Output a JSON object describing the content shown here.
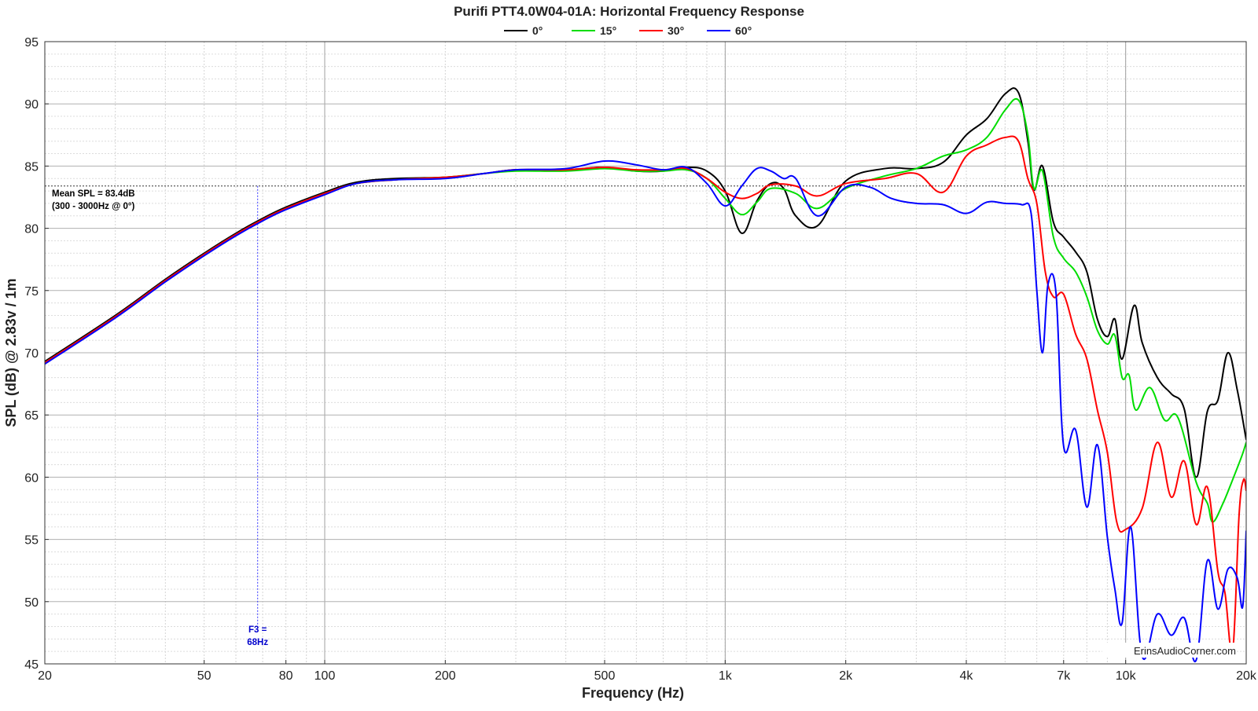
{
  "chart_data": {
    "type": "line",
    "title": "Purifi PTT4.0W04-01A: Horizontal Frequency Response",
    "xlabel": "Frequency (Hz)",
    "ylabel": "SPL (dB) @ 2.83v / 1m",
    "x_scale": "log",
    "xlim": [
      20,
      20000
    ],
    "ylim": [
      45,
      95
    ],
    "x_ticks": [
      20,
      50,
      80,
      100,
      200,
      500,
      1000,
      2000,
      4000,
      7000,
      10000,
      20000
    ],
    "x_tick_labels": [
      "20",
      "50",
      "80",
      "100",
      "200",
      "500",
      "1k",
      "2k",
      "4k",
      "7k",
      "10k",
      "20k"
    ],
    "y_ticks": [
      45,
      50,
      55,
      60,
      65,
      70,
      75,
      80,
      85,
      90,
      95
    ],
    "grid": true,
    "legend_position": "top-center",
    "series": [
      {
        "name": "0°",
        "color": "#000000",
        "points": [
          [
            20,
            69.3
          ],
          [
            30,
            73.0
          ],
          [
            40,
            75.9
          ],
          [
            50,
            78.0
          ],
          [
            60,
            79.6
          ],
          [
            70,
            80.8
          ],
          [
            80,
            81.7
          ],
          [
            100,
            82.9
          ],
          [
            120,
            83.7
          ],
          [
            150,
            84.0
          ],
          [
            200,
            84.1
          ],
          [
            250,
            84.4
          ],
          [
            300,
            84.7
          ],
          [
            400,
            84.7
          ],
          [
            500,
            84.9
          ],
          [
            600,
            84.6
          ],
          [
            700,
            84.6
          ],
          [
            800,
            84.9
          ],
          [
            900,
            84.6
          ],
          [
            1000,
            83.0
          ],
          [
            1100,
            79.6
          ],
          [
            1200,
            82.2
          ],
          [
            1300,
            83.6
          ],
          [
            1400,
            83.2
          ],
          [
            1500,
            81.0
          ],
          [
            1700,
            80.2
          ],
          [
            2000,
            83.8
          ],
          [
            2500,
            84.8
          ],
          [
            3000,
            84.8
          ],
          [
            3500,
            85.3
          ],
          [
            4000,
            87.5
          ],
          [
            4500,
            88.8
          ],
          [
            5000,
            90.8
          ],
          [
            5400,
            90.9
          ],
          [
            5700,
            87.0
          ],
          [
            5900,
            83.1
          ],
          [
            6200,
            85.0
          ],
          [
            6600,
            80.5
          ],
          [
            7000,
            79.3
          ],
          [
            7500,
            78.1
          ],
          [
            8000,
            76.5
          ],
          [
            8500,
            72.7
          ],
          [
            9000,
            71.3
          ],
          [
            9400,
            72.7
          ],
          [
            9800,
            69.5
          ],
          [
            10500,
            73.8
          ],
          [
            11000,
            70.8
          ],
          [
            12000,
            68.0
          ],
          [
            13000,
            66.7
          ],
          [
            14000,
            65.5
          ],
          [
            15000,
            60.0
          ],
          [
            16000,
            65.3
          ],
          [
            17000,
            66.2
          ],
          [
            18000,
            70.0
          ],
          [
            19000,
            67.0
          ],
          [
            20000,
            63.0
          ]
        ]
      },
      {
        "name": "15°",
        "color": "#00dd00",
        "points": [
          [
            20,
            69.2
          ],
          [
            30,
            72.9
          ],
          [
            40,
            75.8
          ],
          [
            50,
            77.9
          ],
          [
            60,
            79.5
          ],
          [
            70,
            80.7
          ],
          [
            80,
            81.6
          ],
          [
            100,
            82.8
          ],
          [
            120,
            83.6
          ],
          [
            150,
            83.9
          ],
          [
            200,
            84.1
          ],
          [
            250,
            84.4
          ],
          [
            300,
            84.6
          ],
          [
            400,
            84.6
          ],
          [
            500,
            84.8
          ],
          [
            600,
            84.6
          ],
          [
            700,
            84.6
          ],
          [
            800,
            84.7
          ],
          [
            900,
            84.0
          ],
          [
            1000,
            82.4
          ],
          [
            1100,
            81.1
          ],
          [
            1200,
            82.1
          ],
          [
            1300,
            83.2
          ],
          [
            1500,
            82.8
          ],
          [
            1700,
            81.6
          ],
          [
            2000,
            83.2
          ],
          [
            2500,
            84.2
          ],
          [
            3000,
            84.8
          ],
          [
            3500,
            85.8
          ],
          [
            4000,
            86.3
          ],
          [
            4500,
            87.3
          ],
          [
            5000,
            89.5
          ],
          [
            5400,
            90.3
          ],
          [
            5700,
            87.5
          ],
          [
            5900,
            83.2
          ],
          [
            6200,
            84.6
          ],
          [
            6600,
            79.3
          ],
          [
            7000,
            77.6
          ],
          [
            7500,
            76.5
          ],
          [
            8000,
            74.5
          ],
          [
            8500,
            71.8
          ],
          [
            9000,
            70.7
          ],
          [
            9400,
            71.4
          ],
          [
            9800,
            68.0
          ],
          [
            10200,
            68.2
          ],
          [
            10600,
            65.4
          ],
          [
            11500,
            67.2
          ],
          [
            12500,
            64.6
          ],
          [
            13500,
            64.8
          ],
          [
            15000,
            59.6
          ],
          [
            16000,
            57.9
          ],
          [
            16500,
            56.4
          ],
          [
            17500,
            57.9
          ],
          [
            18500,
            59.8
          ],
          [
            19500,
            61.7
          ],
          [
            20000,
            62.8
          ]
        ]
      },
      {
        "name": "30°",
        "color": "#ff0000",
        "points": [
          [
            20,
            69.2
          ],
          [
            30,
            72.9
          ],
          [
            40,
            75.8
          ],
          [
            50,
            77.9
          ],
          [
            60,
            79.5
          ],
          [
            70,
            80.7
          ],
          [
            80,
            81.6
          ],
          [
            100,
            82.8
          ],
          [
            120,
            83.6
          ],
          [
            150,
            83.9
          ],
          [
            200,
            84.1
          ],
          [
            250,
            84.4
          ],
          [
            300,
            84.7
          ],
          [
            400,
            84.7
          ],
          [
            500,
            84.9
          ],
          [
            600,
            84.7
          ],
          [
            700,
            84.7
          ],
          [
            800,
            84.8
          ],
          [
            900,
            84.0
          ],
          [
            1000,
            82.9
          ],
          [
            1100,
            82.4
          ],
          [
            1200,
            82.8
          ],
          [
            1300,
            83.5
          ],
          [
            1500,
            83.4
          ],
          [
            1700,
            82.6
          ],
          [
            2000,
            83.6
          ],
          [
            2500,
            84.0
          ],
          [
            3000,
            84.4
          ],
          [
            3500,
            82.9
          ],
          [
            4000,
            85.8
          ],
          [
            4500,
            86.7
          ],
          [
            5000,
            87.3
          ],
          [
            5400,
            87.0
          ],
          [
            5700,
            84.0
          ],
          [
            6000,
            82.0
          ],
          [
            6300,
            76.5
          ],
          [
            6600,
            74.5
          ],
          [
            7000,
            74.7
          ],
          [
            7500,
            71.5
          ],
          [
            8000,
            69.5
          ],
          [
            8500,
            65.4
          ],
          [
            9000,
            62.0
          ],
          [
            9500,
            56.4
          ],
          [
            10000,
            55.8
          ],
          [
            11000,
            57.5
          ],
          [
            12000,
            62.8
          ],
          [
            13000,
            58.4
          ],
          [
            14000,
            61.3
          ],
          [
            15000,
            56.2
          ],
          [
            16000,
            59.2
          ],
          [
            17000,
            52.4
          ],
          [
            17700,
            50.7
          ],
          [
            18500,
            46.0
          ],
          [
            19200,
            57.0
          ],
          [
            19700,
            59.8
          ],
          [
            20000,
            58.9
          ]
        ]
      },
      {
        "name": "60°",
        "color": "#0000ff",
        "points": [
          [
            20,
            69.1
          ],
          [
            30,
            72.8
          ],
          [
            40,
            75.7
          ],
          [
            50,
            77.8
          ],
          [
            60,
            79.4
          ],
          [
            70,
            80.6
          ],
          [
            80,
            81.5
          ],
          [
            100,
            82.7
          ],
          [
            120,
            83.6
          ],
          [
            150,
            83.9
          ],
          [
            200,
            84.0
          ],
          [
            250,
            84.4
          ],
          [
            300,
            84.7
          ],
          [
            400,
            84.8
          ],
          [
            500,
            85.4
          ],
          [
            600,
            85.1
          ],
          [
            700,
            84.7
          ],
          [
            800,
            84.9
          ],
          [
            900,
            83.6
          ],
          [
            1000,
            81.8
          ],
          [
            1100,
            83.4
          ],
          [
            1200,
            84.8
          ],
          [
            1300,
            84.6
          ],
          [
            1400,
            84.0
          ],
          [
            1500,
            84.0
          ],
          [
            1700,
            81.0
          ],
          [
            2000,
            83.3
          ],
          [
            2300,
            83.3
          ],
          [
            2600,
            82.4
          ],
          [
            3000,
            82.0
          ],
          [
            3500,
            81.9
          ],
          [
            4000,
            81.2
          ],
          [
            4500,
            82.1
          ],
          [
            5000,
            82.0
          ],
          [
            5500,
            81.9
          ],
          [
            5800,
            81.3
          ],
          [
            6000,
            75.0
          ],
          [
            6200,
            70.0
          ],
          [
            6400,
            75.5
          ],
          [
            6700,
            74.8
          ],
          [
            7000,
            62.5
          ],
          [
            7500,
            63.8
          ],
          [
            8000,
            57.6
          ],
          [
            8500,
            62.6
          ],
          [
            9000,
            55.2
          ],
          [
            9400,
            51.0
          ],
          [
            9800,
            48.3
          ],
          [
            10300,
            56.0
          ],
          [
            11000,
            45.6
          ],
          [
            12000,
            49.0
          ],
          [
            13000,
            47.3
          ],
          [
            14000,
            48.7
          ],
          [
            15000,
            45.3
          ],
          [
            16000,
            53.3
          ],
          [
            17000,
            49.4
          ],
          [
            18000,
            52.6
          ],
          [
            19000,
            51.9
          ],
          [
            19600,
            49.6
          ],
          [
            20000,
            55.7
          ]
        ]
      }
    ],
    "annotations": {
      "mean_spl_value": 83.4,
      "mean_spl_line1": "Mean SPL = 83.4dB",
      "mean_spl_line2": "(300 - 3000Hz @ 0°)",
      "f3_frequency": 68,
      "f3_line1": "F3 =",
      "f3_line2": "68Hz",
      "watermark": "ErinsAudioCorner.com"
    }
  }
}
